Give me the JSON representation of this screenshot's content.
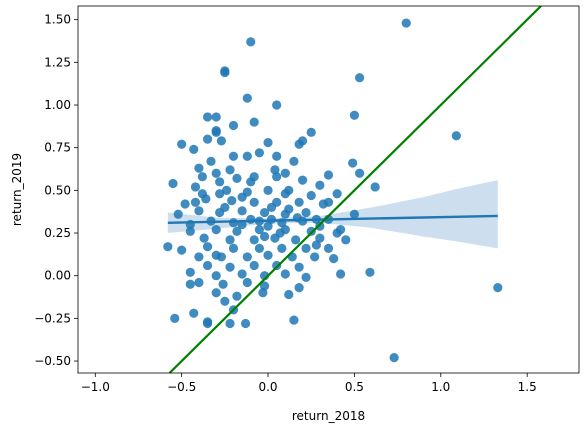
{
  "chart_data": {
    "type": "scatter",
    "title": "",
    "xlabel": "return_2018",
    "ylabel": "return_2019",
    "xlim": [
      -1.1,
      1.8
    ],
    "ylim": [
      -0.57,
      1.58
    ],
    "x_ticks": [
      -1.0,
      -0.5,
      0.0,
      0.5,
      1.0,
      1.5
    ],
    "x_tick_labels": [
      "−1.0",
      "−0.5",
      "0.0",
      "0.5",
      "1.0",
      "1.5"
    ],
    "y_ticks": [
      -0.5,
      -0.25,
      0.0,
      0.25,
      0.5,
      0.75,
      1.0,
      1.25,
      1.5
    ],
    "y_tick_labels": [
      "−0.50",
      "−0.25",
      "0.00",
      "0.25",
      "0.50",
      "0.75",
      "1.00",
      "1.25",
      "1.50"
    ],
    "grid": false,
    "colors": {
      "points": "#1f77b4",
      "regression": "#1f77b4",
      "confidence_band": "#cddfee",
      "identity_line": "#008000"
    },
    "regression_line": {
      "x": [
        -0.58,
        1.33
      ],
      "y": [
        0.31,
        0.35
      ]
    },
    "confidence_band": {
      "x": [
        -0.58,
        -0.3,
        0.0,
        0.3,
        0.6,
        0.9,
        1.1,
        1.33
      ],
      "upper": [
        0.37,
        0.34,
        0.335,
        0.35,
        0.4,
        0.46,
        0.51,
        0.56
      ],
      "lower": [
        0.25,
        0.275,
        0.305,
        0.31,
        0.28,
        0.23,
        0.2,
        0.16
      ]
    },
    "identity_line": {
      "x": [
        -0.57,
        1.58
      ],
      "y": [
        -0.57,
        1.58
      ]
    },
    "points": [
      [
        0.8,
        1.48
      ],
      [
        -0.1,
        1.37
      ],
      [
        -0.25,
        1.19
      ],
      [
        -0.25,
        1.2
      ],
      [
        0.53,
        1.16
      ],
      [
        -0.12,
        1.04
      ],
      [
        0.05,
        1.0
      ],
      [
        0.5,
        0.94
      ],
      [
        -0.3,
        0.93
      ],
      [
        -0.35,
        0.93
      ],
      [
        -0.2,
        0.88
      ],
      [
        -0.08,
        0.9
      ],
      [
        0.25,
        0.84
      ],
      [
        -0.3,
        0.84
      ],
      [
        -0.3,
        0.85
      ],
      [
        1.09,
        0.82
      ],
      [
        -0.5,
        0.77
      ],
      [
        -0.35,
        0.8
      ],
      [
        -0.27,
        0.79
      ],
      [
        0.0,
        0.78
      ],
      [
        0.18,
        0.77
      ],
      [
        0.2,
        0.79
      ],
      [
        -0.43,
        0.74
      ],
      [
        -0.2,
        0.7
      ],
      [
        -0.12,
        0.7
      ],
      [
        0.05,
        0.7
      ],
      [
        -0.05,
        0.72
      ],
      [
        0.15,
        0.67
      ],
      [
        0.49,
        0.66
      ],
      [
        -0.33,
        0.67
      ],
      [
        -0.4,
        0.63
      ],
      [
        -0.3,
        0.6
      ],
      [
        -0.22,
        0.62
      ],
      [
        0.04,
        0.62
      ],
      [
        0.1,
        0.6
      ],
      [
        0.35,
        0.59
      ],
      [
        0.53,
        0.6
      ],
      [
        -0.55,
        0.54
      ],
      [
        -0.42,
        0.52
      ],
      [
        -0.28,
        0.55
      ],
      [
        -0.18,
        0.57
      ],
      [
        -0.08,
        0.58
      ],
      [
        0.05,
        0.58
      ],
      [
        0.2,
        0.56
      ],
      [
        0.3,
        0.53
      ],
      [
        0.62,
        0.52
      ],
      [
        -0.38,
        0.48
      ],
      [
        -0.24,
        0.5
      ],
      [
        -0.12,
        0.49
      ],
      [
        0.0,
        0.5
      ],
      [
        0.12,
        0.5
      ],
      [
        0.25,
        0.47
      ],
      [
        0.4,
        0.48
      ],
      [
        -0.48,
        0.42
      ],
      [
        -0.36,
        0.45
      ],
      [
        -0.21,
        0.44
      ],
      [
        -0.08,
        0.43
      ],
      [
        0.05,
        0.43
      ],
      [
        0.18,
        0.43
      ],
      [
        0.32,
        0.42
      ],
      [
        -0.52,
        0.36
      ],
      [
        -0.4,
        0.38
      ],
      [
        -0.28,
        0.37
      ],
      [
        -0.15,
        0.38
      ],
      [
        -0.02,
        0.37
      ],
      [
        0.1,
        0.36
      ],
      [
        0.22,
        0.37
      ],
      [
        0.35,
        0.33
      ],
      [
        0.5,
        0.36
      ],
      [
        -0.45,
        0.3
      ],
      [
        -0.33,
        0.32
      ],
      [
        -0.2,
        0.31
      ],
      [
        -0.05,
        0.32
      ],
      [
        0.08,
        0.31
      ],
      [
        0.2,
        0.32
      ],
      [
        0.28,
        0.33
      ],
      [
        -0.45,
        0.26
      ],
      [
        -0.3,
        0.27
      ],
      [
        -0.18,
        0.26
      ],
      [
        -0.05,
        0.27
      ],
      [
        0.1,
        0.27
      ],
      [
        0.25,
        0.26
      ],
      [
        0.42,
        0.27
      ],
      [
        -0.37,
        0.22
      ],
      [
        -0.22,
        0.21
      ],
      [
        -0.08,
        0.21
      ],
      [
        0.04,
        0.22
      ],
      [
        0.16,
        0.21
      ],
      [
        0.3,
        0.22
      ],
      [
        0.45,
        0.21
      ],
      [
        -0.58,
        0.17
      ],
      [
        -0.5,
        0.15
      ],
      [
        -0.35,
        0.17
      ],
      [
        -0.2,
        0.16
      ],
      [
        -0.05,
        0.16
      ],
      [
        0.08,
        0.16
      ],
      [
        0.22,
        0.16
      ],
      [
        0.35,
        0.16
      ],
      [
        -0.4,
        0.11
      ],
      [
        -0.27,
        0.11
      ],
      [
        -0.12,
        0.11
      ],
      [
        0.0,
        0.12
      ],
      [
        0.14,
        0.11
      ],
      [
        0.27,
        0.11
      ],
      [
        0.38,
        0.1
      ],
      [
        -0.35,
        0.06
      ],
      [
        -0.22,
        0.05
      ],
      [
        -0.08,
        0.06
      ],
      [
        0.05,
        0.06
      ],
      [
        0.18,
        0.05
      ],
      [
        0.42,
        0.01
      ],
      [
        0.59,
        0.02
      ],
      [
        -0.45,
        0.02
      ],
      [
        -0.3,
        0.0
      ],
      [
        -0.15,
        0.01
      ],
      [
        -0.02,
        0.0
      ],
      [
        0.1,
        0.01
      ],
      [
        0.22,
        -0.01
      ],
      [
        -0.4,
        -0.04
      ],
      [
        -0.26,
        -0.05
      ],
      [
        -0.12,
        -0.04
      ],
      [
        -0.02,
        -0.06
      ],
      [
        0.18,
        -0.07
      ],
      [
        -0.3,
        -0.1
      ],
      [
        -0.18,
        -0.12
      ],
      [
        -0.03,
        -0.1
      ],
      [
        0.12,
        -0.11
      ],
      [
        -0.45,
        -0.05
      ],
      [
        -0.25,
        -0.15
      ],
      [
        -0.2,
        -0.2
      ],
      [
        -0.54,
        -0.25
      ],
      [
        -0.43,
        -0.22
      ],
      [
        -0.35,
        -0.27
      ],
      [
        -0.35,
        -0.28
      ],
      [
        -0.22,
        -0.28
      ],
      [
        -0.13,
        -0.28
      ],
      [
        0.15,
        -0.26
      ],
      [
        1.33,
        -0.07
      ],
      [
        0.73,
        -0.48
      ],
      [
        -0.42,
        0.43
      ],
      [
        -0.15,
        0.46
      ],
      [
        0.02,
        0.4
      ],
      [
        0.12,
        0.39
      ],
      [
        -0.1,
        0.33
      ],
      [
        0.0,
        0.29
      ],
      [
        0.07,
        0.25
      ],
      [
        -0.02,
        0.23
      ],
      [
        -0.3,
        0.12
      ],
      [
        0.3,
        0.29
      ],
      [
        0.17,
        0.34
      ],
      [
        -0.25,
        0.4
      ],
      [
        0.4,
        0.25
      ],
      [
        -0.1,
        0.55
      ],
      [
        0.1,
        0.48
      ],
      [
        -0.38,
        0.58
      ],
      [
        0.28,
        0.18
      ],
      [
        -0.15,
        0.3
      ],
      [
        0.02,
        0.33
      ],
      [
        -0.28,
        0.48
      ],
      [
        0.35,
        0.43
      ]
    ]
  }
}
